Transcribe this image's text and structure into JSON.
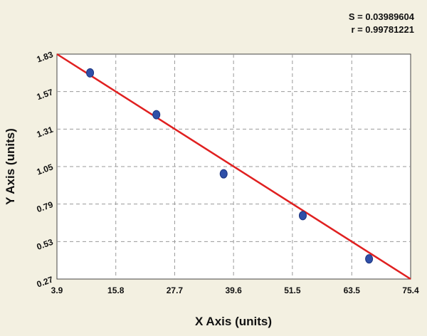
{
  "chart_data": {
    "type": "scatter",
    "title": "",
    "xlabel": "X Axis (units)",
    "ylabel": "Y Axis (units)",
    "xlim": [
      3.9,
      75.4
    ],
    "ylim": [
      0.27,
      1.83
    ],
    "x_ticks": [
      "3.9",
      "15.8",
      "27.7",
      "39.6",
      "51.5",
      "63.5",
      "75.4"
    ],
    "y_ticks": [
      "0.27",
      "0.53",
      "0.79",
      "1.05",
      "1.31",
      "1.57",
      "1.83"
    ],
    "grid": true,
    "series": [
      {
        "values": [
          {
            "x": 10.6,
            "y": 1.7
          },
          {
            "x": 24.0,
            "y": 1.41
          },
          {
            "x": 37.6,
            "y": 1.0
          },
          {
            "x": 53.6,
            "y": 0.71
          },
          {
            "x": 67.0,
            "y": 0.41
          }
        ],
        "color": "#2f4fa8"
      }
    ],
    "fit_line": {
      "points": [
        {
          "x": 3.9,
          "y": 1.83
        },
        {
          "x": 75.4,
          "y": 0.27
        }
      ],
      "color": "#e02020"
    },
    "stats": {
      "s_label": "S = 0.03989604",
      "r_label": "r = 0.99781221"
    }
  }
}
